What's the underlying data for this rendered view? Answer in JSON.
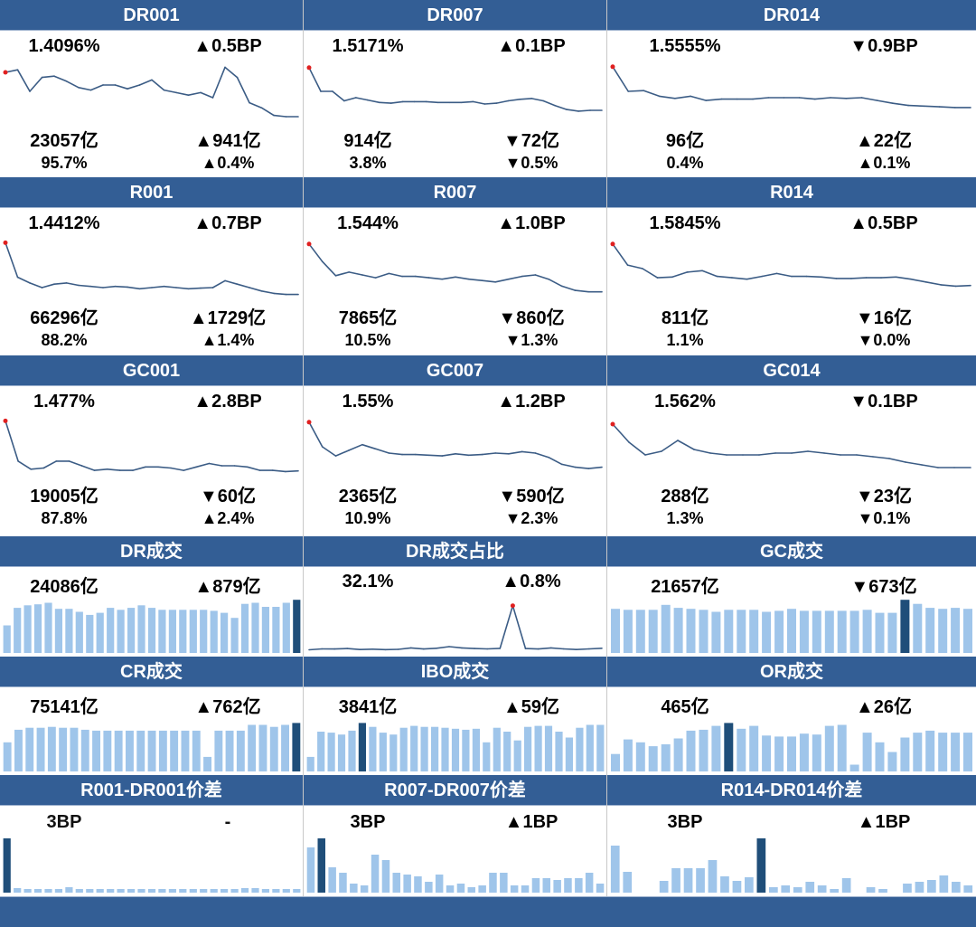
{
  "colors": {
    "header": "#335e95",
    "up": "#ff1a1a",
    "down": "#1fb04f",
    "line": "#3b5c85",
    "bar": "#9fc5ea",
    "bar_highlight": "#1f4e79",
    "marker": "#e02020"
  },
  "panels": [
    {
      "id": "dr001",
      "title": "DR001",
      "type": "line",
      "row1": [
        {
          "text": "1.4096%",
          "color": "up"
        },
        {
          "text": "▲0.5BP",
          "color": "up"
        }
      ],
      "row2": [
        {
          "text": "23057亿",
          "color": "up"
        },
        {
          "text": "▲941亿",
          "color": "up"
        }
      ],
      "row3": [
        {
          "text": "95.7%",
          "color": "up"
        },
        {
          "text": "▲0.4%",
          "color": "up"
        }
      ],
      "chart_data": {
        "type": "line",
        "values": [
          1.7,
          1.72,
          1.55,
          1.66,
          1.67,
          1.63,
          1.58,
          1.56,
          1.6,
          1.6,
          1.57,
          1.6,
          1.64,
          1.56,
          1.54,
          1.52,
          1.54,
          1.5,
          1.74,
          1.66,
          1.46,
          1.42,
          1.36,
          1.35,
          1.35
        ],
        "ylim": [
          1.3,
          1.8
        ]
      }
    },
    {
      "id": "dr007",
      "title": "DR007",
      "type": "line",
      "row1": [
        {
          "text": "1.5171%",
          "color": "up"
        },
        {
          "text": "▲0.1BP",
          "color": "up"
        }
      ],
      "row2": [
        {
          "text": "914亿",
          "color": "down"
        },
        {
          "text": "▼72亿",
          "color": "down"
        }
      ],
      "row3": [
        {
          "text": "3.8%",
          "color": "down"
        },
        {
          "text": "▼0.5%",
          "color": "down"
        }
      ],
      "chart_data": {
        "type": "line",
        "values": [
          2.1,
          1.8,
          1.8,
          1.68,
          1.72,
          1.69,
          1.66,
          1.65,
          1.67,
          1.67,
          1.67,
          1.66,
          1.66,
          1.66,
          1.67,
          1.64,
          1.65,
          1.68,
          1.7,
          1.71,
          1.68,
          1.62,
          1.57,
          1.55,
          1.56,
          1.56
        ],
        "ylim": [
          1.4,
          2.2
        ]
      }
    },
    {
      "id": "dr014",
      "title": "DR014",
      "type": "line",
      "row1": [
        {
          "text": "1.5555%",
          "color": "down"
        },
        {
          "text": "▼0.9BP",
          "color": "down"
        }
      ],
      "row2": [
        {
          "text": "96亿",
          "color": "up"
        },
        {
          "text": "▲22亿",
          "color": "up"
        }
      ],
      "row3": [
        {
          "text": "0.4%",
          "color": "up"
        },
        {
          "text": "▲0.1%",
          "color": "up"
        }
      ],
      "chart_data": {
        "type": "line",
        "values": [
          2.3,
          1.95,
          1.96,
          1.88,
          1.85,
          1.88,
          1.82,
          1.84,
          1.84,
          1.84,
          1.86,
          1.86,
          1.86,
          1.84,
          1.86,
          1.85,
          1.86,
          1.82,
          1.78,
          1.75,
          1.74,
          1.73,
          1.72,
          1.72
        ],
        "ylim": [
          1.5,
          2.4
        ]
      }
    },
    {
      "id": "r001",
      "title": "R001",
      "type": "line",
      "row1": [
        {
          "text": "1.4412%",
          "color": "up"
        },
        {
          "text": "▲0.7BP",
          "color": "up"
        }
      ],
      "row2": [
        {
          "text": "66296亿",
          "color": "up"
        },
        {
          "text": "▲1729亿",
          "color": "up"
        }
      ],
      "row3": [
        {
          "text": "88.2%",
          "color": "up"
        },
        {
          "text": "▲1.4%",
          "color": "up"
        }
      ],
      "chart_data": {
        "type": "line",
        "values": [
          2.4,
          1.8,
          1.7,
          1.62,
          1.68,
          1.7,
          1.66,
          1.64,
          1.62,
          1.64,
          1.63,
          1.6,
          1.62,
          1.64,
          1.62,
          1.6,
          1.61,
          1.62,
          1.74,
          1.68,
          1.62,
          1.56,
          1.52,
          1.5,
          1.5
        ],
        "ylim": [
          1.4,
          2.5
        ]
      }
    },
    {
      "id": "r007",
      "title": "R007",
      "type": "line",
      "row1": [
        {
          "text": "1.544%",
          "color": "up"
        },
        {
          "text": "▲1.0BP",
          "color": "up"
        }
      ],
      "row2": [
        {
          "text": "7865亿",
          "color": "down"
        },
        {
          "text": "▼860亿",
          "color": "down"
        }
      ],
      "row3": [
        {
          "text": "10.5%",
          "color": "down"
        },
        {
          "text": "▼1.3%",
          "color": "down"
        }
      ],
      "chart_data": {
        "type": "line",
        "values": [
          2.3,
          2.05,
          1.85,
          1.9,
          1.86,
          1.82,
          1.88,
          1.84,
          1.84,
          1.82,
          1.8,
          1.83,
          1.8,
          1.78,
          1.76,
          1.8,
          1.84,
          1.86,
          1.8,
          1.7,
          1.64,
          1.62,
          1.62
        ],
        "ylim": [
          1.5,
          2.4
        ]
      }
    },
    {
      "id": "r014",
      "title": "R014",
      "type": "line",
      "row1": [
        {
          "text": "1.5845%",
          "color": "up"
        },
        {
          "text": "▲0.5BP",
          "color": "up"
        }
      ],
      "row2": [
        {
          "text": "811亿",
          "color": "down"
        },
        {
          "text": "▼16亿",
          "color": "down"
        }
      ],
      "row3": [
        {
          "text": "1.1%",
          "color": "down"
        },
        {
          "text": "▼0.0%",
          "color": "down"
        }
      ],
      "chart_data": {
        "type": "line",
        "values": [
          2.4,
          2.1,
          2.05,
          1.92,
          1.93,
          2.0,
          2.02,
          1.94,
          1.92,
          1.9,
          1.94,
          1.98,
          1.94,
          1.94,
          1.93,
          1.91,
          1.91,
          1.92,
          1.92,
          1.93,
          1.9,
          1.86,
          1.82,
          1.8,
          1.81
        ],
        "ylim": [
          1.6,
          2.5
        ]
      }
    },
    {
      "id": "gc001",
      "title": "GC001",
      "type": "line",
      "row1": [
        {
          "text": "1.477%",
          "color": "up"
        },
        {
          "text": "▲2.8BP",
          "color": "up"
        }
      ],
      "row2": [
        {
          "text": "19005亿",
          "color": "down"
        },
        {
          "text": "▼60亿",
          "color": "down"
        }
      ],
      "row3": [
        {
          "text": "87.8%",
          "color": "up"
        },
        {
          "text": "▲2.4%",
          "color": "up"
        }
      ],
      "chart_data": {
        "type": "line",
        "values": [
          2.5,
          1.8,
          1.66,
          1.68,
          1.8,
          1.8,
          1.72,
          1.64,
          1.66,
          1.64,
          1.64,
          1.7,
          1.7,
          1.68,
          1.64,
          1.7,
          1.76,
          1.72,
          1.72,
          1.7,
          1.64,
          1.64,
          1.62,
          1.63
        ],
        "ylim": [
          1.5,
          2.6
        ]
      }
    },
    {
      "id": "gc007",
      "title": "GC007",
      "type": "line",
      "row1": [
        {
          "text": "1.55%",
          "color": "up"
        },
        {
          "text": "▲1.2BP",
          "color": "up"
        }
      ],
      "row2": [
        {
          "text": "2365亿",
          "color": "down"
        },
        {
          "text": "▼590亿",
          "color": "down"
        }
      ],
      "row3": [
        {
          "text": "10.9%",
          "color": "down"
        },
        {
          "text": "▼2.3%",
          "color": "down"
        }
      ],
      "chart_data": {
        "type": "line",
        "values": [
          2.4,
          2.05,
          1.92,
          2.0,
          2.08,
          2.02,
          1.96,
          1.94,
          1.94,
          1.93,
          1.92,
          1.95,
          1.93,
          1.94,
          1.96,
          1.95,
          1.98,
          1.96,
          1.9,
          1.8,
          1.76,
          1.74,
          1.76
        ],
        "ylim": [
          1.6,
          2.5
        ]
      }
    },
    {
      "id": "gc014",
      "title": "GC014",
      "type": "line",
      "row1": [
        {
          "text": "1.562%",
          "color": "down"
        },
        {
          "text": "▼0.1BP",
          "color": "down"
        }
      ],
      "row2": [
        {
          "text": "288亿",
          "color": "down"
        },
        {
          "text": "▼23亿",
          "color": "down"
        }
      ],
      "row3": [
        {
          "text": "1.3%",
          "color": "down"
        },
        {
          "text": "▼0.1%",
          "color": "down"
        }
      ],
      "chart_data": {
        "type": "line",
        "values": [
          2.4,
          2.2,
          2.06,
          2.1,
          2.22,
          2.12,
          2.08,
          2.06,
          2.06,
          2.06,
          2.08,
          2.08,
          2.1,
          2.08,
          2.06,
          2.06,
          2.04,
          2.02,
          1.98,
          1.95,
          1.92,
          1.92,
          1.92
        ],
        "ylim": [
          1.8,
          2.5
        ]
      }
    },
    {
      "id": "dr_volume",
      "title": "DR成交",
      "type": "bar",
      "row1": [
        {
          "text": "24086亿",
          "color": "up"
        },
        {
          "text": "▲879亿",
          "color": "up"
        }
      ],
      "chart_data": {
        "type": "bar",
        "values": [
          55,
          90,
          95,
          97,
          100,
          88,
          88,
          82,
          76,
          80,
          90,
          86,
          90,
          95,
          90,
          86,
          86,
          86,
          86,
          86,
          84,
          80,
          70,
          98,
          100,
          92,
          92,
          100,
          106
        ],
        "highlight": [
          28
        ],
        "ylim": [
          0,
          110
        ]
      }
    },
    {
      "id": "dr_volume_share",
      "title": "DR成交占比",
      "type": "line",
      "row1": [
        {
          "text": "32.1%",
          "color": "up"
        },
        {
          "text": "▲0.8%",
          "color": "up"
        }
      ],
      "chart_data": {
        "type": "line",
        "values": [
          2.0,
          2.6,
          2.5,
          2.8,
          2.2,
          2.4,
          2.1,
          2.3,
          3.2,
          2.5,
          3.0,
          4.0,
          3.2,
          2.8,
          2.6,
          2.9,
          30.0,
          2.8,
          2.5,
          3.2,
          2.6,
          2.2,
          2.6,
          3.0
        ],
        "marker_index": 16,
        "ylim": [
          0,
          35
        ]
      }
    },
    {
      "id": "gc_volume",
      "title": "GC成交",
      "type": "bar",
      "row1": [
        {
          "text": "21657亿",
          "color": "down"
        },
        {
          "text": "▼673亿",
          "color": "down"
        }
      ],
      "chart_data": {
        "type": "bar",
        "values": [
          88,
          86,
          86,
          86,
          96,
          90,
          88,
          86,
          82,
          86,
          86,
          86,
          82,
          84,
          88,
          84,
          84,
          84,
          84,
          84,
          86,
          80,
          80,
          106,
          98,
          90,
          88,
          90,
          88
        ],
        "highlight": [
          23
        ],
        "ylim": [
          0,
          110
        ]
      }
    },
    {
      "id": "cr_volume",
      "title": "CR成交",
      "type": "bar",
      "row1": [
        {
          "text": "75141亿",
          "color": "up"
        },
        {
          "text": "▲762亿",
          "color": "up"
        }
      ],
      "chart_data": {
        "type": "bar",
        "values": [
          60,
          86,
          90,
          90,
          92,
          90,
          90,
          86,
          84,
          84,
          84,
          84,
          84,
          84,
          84,
          84,
          84,
          84,
          30,
          84,
          84,
          84,
          96,
          96,
          92,
          96,
          100
        ],
        "highlight": [
          26
        ],
        "ylim": [
          0,
          110
        ]
      }
    },
    {
      "id": "ibo_volume",
      "title": "IBO成交",
      "type": "bar",
      "row1": [
        {
          "text": "3841亿",
          "color": "up"
        },
        {
          "text": "▲59亿",
          "color": "up"
        }
      ],
      "chart_data": {
        "type": "bar",
        "values": [
          30,
          82,
          80,
          76,
          84,
          100,
          92,
          80,
          76,
          90,
          94,
          92,
          92,
          90,
          88,
          86,
          88,
          60,
          90,
          82,
          64,
          92,
          94,
          94,
          82,
          70,
          90,
          96,
          96
        ],
        "highlight": [
          5
        ],
        "ylim": [
          0,
          110
        ]
      }
    },
    {
      "id": "or_volume",
      "title": "OR成交",
      "type": "bar",
      "row1": [
        {
          "text": "465亿",
          "color": "up"
        },
        {
          "text": "▲26亿",
          "color": "up"
        }
      ],
      "chart_data": {
        "type": "bar",
        "values": [
          36,
          66,
          60,
          52,
          56,
          68,
          84,
          86,
          94,
          100,
          88,
          94,
          74,
          72,
          72,
          78,
          76,
          94,
          96,
          14,
          80,
          60,
          40,
          70,
          80,
          84,
          80,
          80,
          80
        ],
        "highlight": [
          9
        ],
        "ylim": [
          0,
          110
        ]
      }
    },
    {
      "id": "r001_dr001_spread",
      "title": "R001-DR001价差",
      "type": "bar",
      "row1": [
        {
          "text": "3BP",
          "color": "black"
        },
        {
          "text": "-",
          "color": "black"
        }
      ],
      "chart_data": {
        "type": "bar",
        "values": [
          60,
          5,
          4,
          4,
          4,
          4,
          6,
          4,
          4,
          4,
          4,
          4,
          4,
          4,
          4,
          4,
          4,
          4,
          4,
          4,
          4,
          4,
          4,
          5,
          5,
          4,
          4,
          4,
          4
        ],
        "highlight": [
          0
        ],
        "ylim": [
          0,
          60
        ]
      }
    },
    {
      "id": "r007_dr007_spread",
      "title": "R007-DR007价差",
      "type": "bar",
      "row1": [
        {
          "text": "3BP",
          "color": "up"
        },
        {
          "text": "▲1BP",
          "color": "up"
        }
      ],
      "chart_data": {
        "type": "bar",
        "values": [
          50,
          60,
          28,
          22,
          10,
          8,
          42,
          36,
          22,
          20,
          18,
          12,
          20,
          8,
          10,
          6,
          8,
          22,
          22,
          8,
          8,
          16,
          16,
          14,
          16,
          16,
          22,
          10
        ],
        "highlight": [
          1
        ],
        "ylim": [
          0,
          60
        ]
      }
    },
    {
      "id": "r014_dr014_spread",
      "title": "R014-DR014价差",
      "type": "bar",
      "row1": [
        {
          "text": "3BP",
          "color": "up"
        },
        {
          "text": "▲1BP",
          "color": "up"
        }
      ],
      "chart_data": {
        "type": "bar",
        "values": [
          52,
          23,
          0,
          0,
          13,
          27,
          27,
          27,
          36,
          18,
          13,
          17,
          60,
          6,
          8,
          6,
          12,
          8,
          4,
          16,
          0,
          6,
          4,
          0,
          10,
          12,
          14,
          19,
          12,
          8
        ],
        "highlight": [
          12
        ],
        "ylim": [
          0,
          60
        ]
      }
    }
  ]
}
